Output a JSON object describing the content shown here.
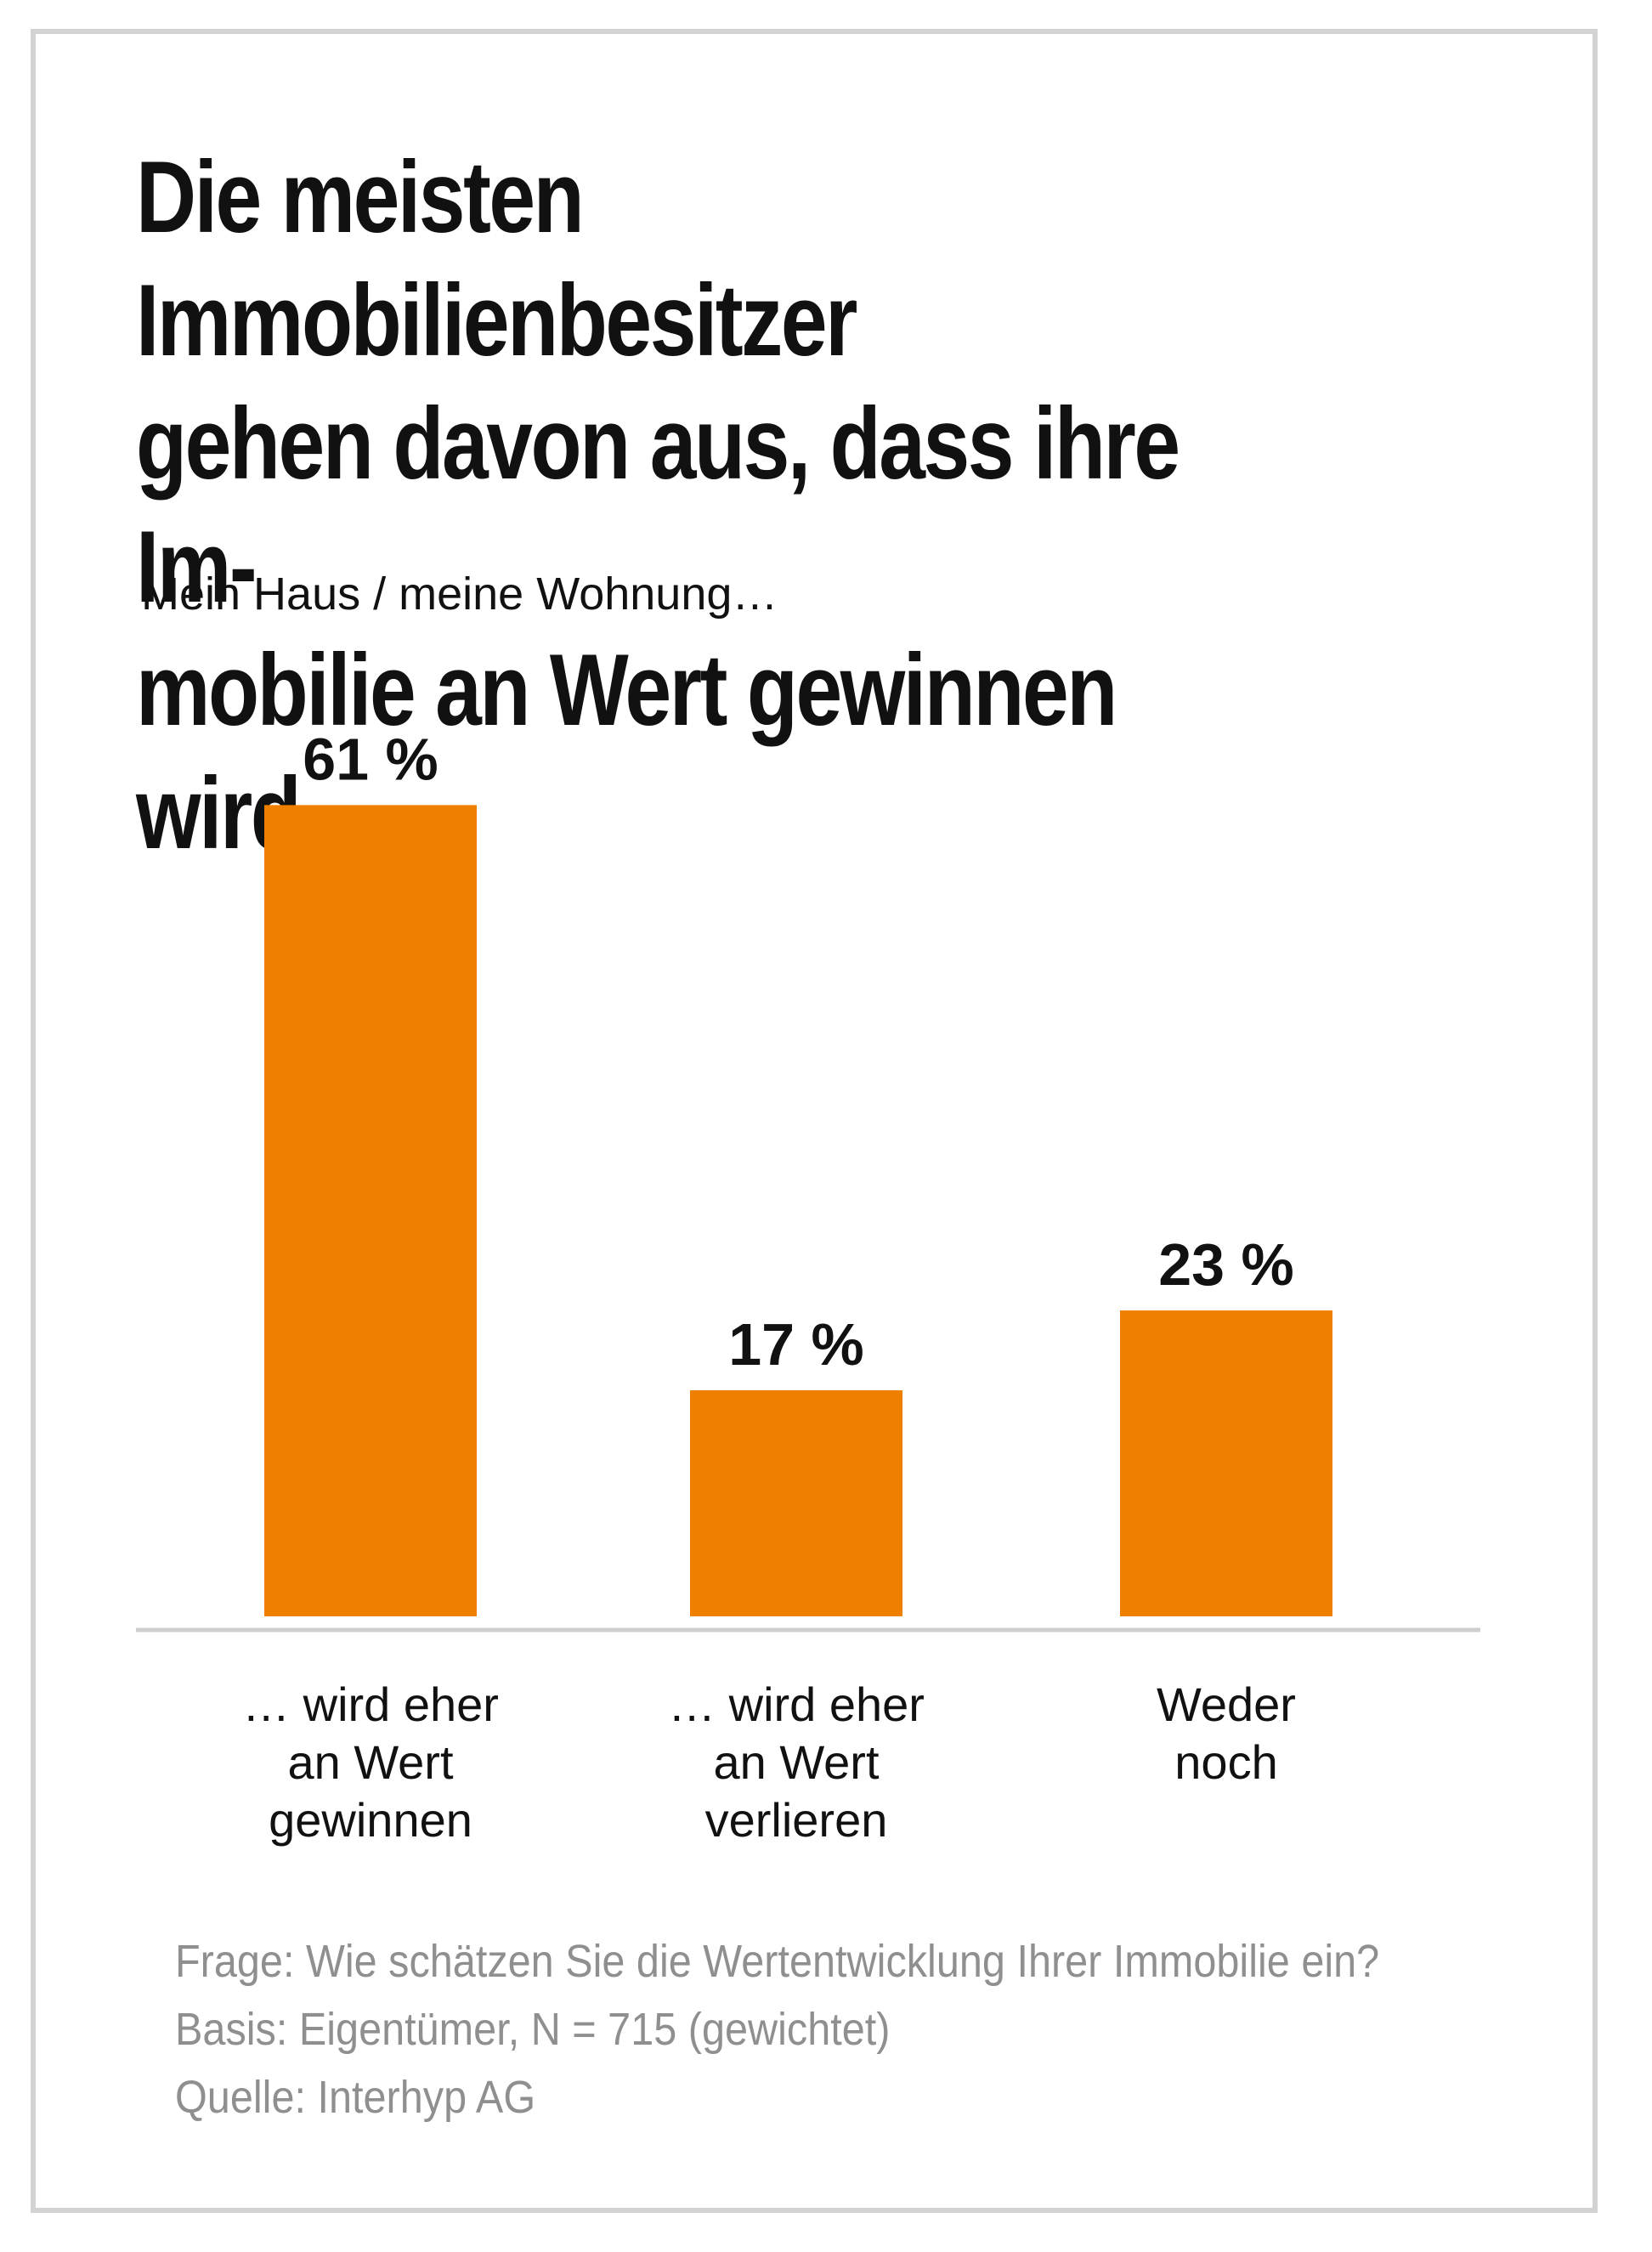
{
  "title": "Die meisten Immobilienbesitzer\ngehen davon aus, dass ihre Im-\nmobilie an Wert gewinnen wird.",
  "subtitle": "Mein Haus / meine Wohnung…",
  "colors": {
    "bar": "#ef7f00",
    "axis": "#cfcfcf",
    "text": "#111111",
    "footnote": "#8f8f8f",
    "border": "#d2d2d2"
  },
  "chart_data": {
    "type": "bar",
    "categories": [
      "… wird eher\nan Wert\ngewinnen",
      "… wird eher\nan Wert\nverlieren",
      "Weder\nnoch"
    ],
    "values": [
      61,
      17,
      23
    ],
    "value_labels": [
      "61 %",
      "17 %",
      "23 %"
    ],
    "unit": "%",
    "grid": false,
    "legend": "none"
  },
  "footnotes": {
    "question": "Frage: Wie schätzen Sie die Wertentwicklung Ihrer Immobilie ein?",
    "base": "Basis: Eigentümer, N = 715 (gewichtet)",
    "source": "Quelle: Interhyp AG"
  }
}
